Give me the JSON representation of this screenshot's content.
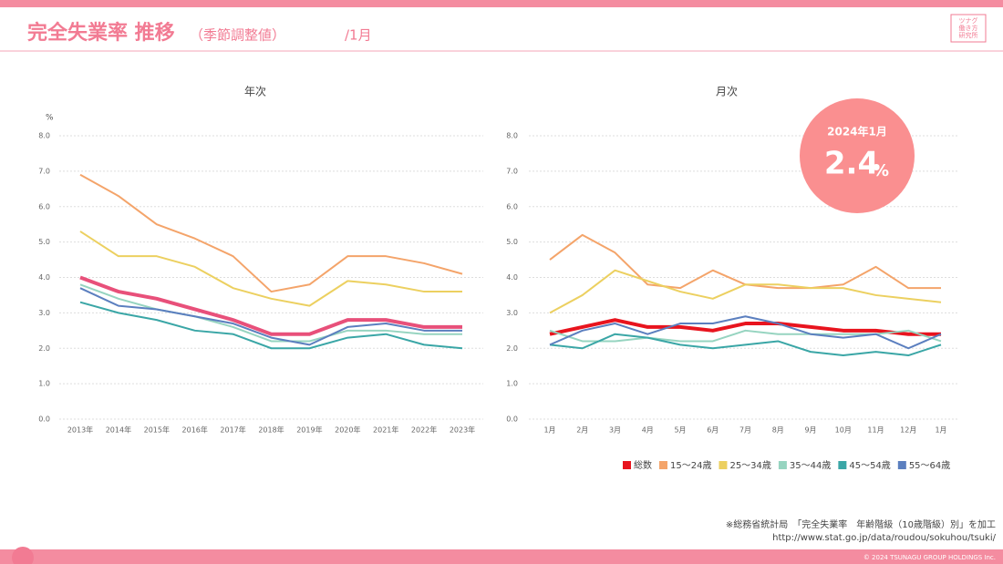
{
  "header": {
    "title": "完全失業率 推移",
    "subtitle": "（季節調整値）",
    "period": "/1月",
    "logo": [
      "ツナグ",
      "働き方",
      "研究所"
    ]
  },
  "badge": {
    "label": "2024年1月",
    "value": "2.4",
    "unit": "%"
  },
  "source": [
    "※総務省統計局　「完全失業率　年齢階級（10歳階級）別」を加工",
    "http://www.stat.go.jp/data/roudou/sokuhou/tsuki/"
  ],
  "copyright": "© 2024 TSUNAGU GROUP HOLDINGS Inc.",
  "chart_data": [
    {
      "type": "line",
      "title": "年次",
      "y_label": "%",
      "grid": true,
      "categories": [
        "2013年",
        "2014年",
        "2015年",
        "2016年",
        "2017年",
        "2018年",
        "2019年",
        "2020年",
        "2021年",
        "2022年",
        "2023年"
      ],
      "ylim": [
        0,
        8
      ],
      "yticks": [
        {
          "value": 0,
          "label": "0.0"
        },
        {
          "value": 1,
          "label": "1.0"
        },
        {
          "value": 2,
          "label": "2.0"
        },
        {
          "value": 3,
          "label": "3.0"
        },
        {
          "value": 4,
          "label": "4.0"
        },
        {
          "value": 5,
          "label": "5.0"
        },
        {
          "value": 6,
          "label": "6.0"
        },
        {
          "value": 7,
          "label": "7.0"
        },
        {
          "value": 8,
          "label": "8.0"
        }
      ],
      "series": [
        {
          "color": "#f4a46a",
          "values": [
            6.9,
            6.3,
            5.5,
            5.1,
            4.6,
            3.6,
            3.8,
            4.6,
            4.6,
            4.4,
            4.1
          ]
        },
        {
          "color": "#ecd060",
          "values": [
            5.3,
            4.6,
            4.6,
            4.3,
            3.7,
            3.4,
            3.2,
            3.9,
            3.8,
            3.6,
            3.6
          ]
        },
        {
          "color": "#96d4c0",
          "values": [
            3.8,
            3.4,
            3.1,
            2.9,
            2.6,
            2.2,
            2.2,
            2.5,
            2.5,
            2.4,
            2.4
          ]
        },
        {
          "color": "#3aa6a6",
          "values": [
            3.3,
            3.0,
            2.8,
            2.5,
            2.4,
            2.0,
            2.0,
            2.3,
            2.4,
            2.1,
            2.0
          ]
        },
        {
          "color": "#5b7fbf",
          "values": [
            3.7,
            3.2,
            3.1,
            2.9,
            2.7,
            2.3,
            2.1,
            2.6,
            2.7,
            2.5,
            2.5
          ]
        },
        {
          "color": "#e8507a",
          "values": [
            4.0,
            3.6,
            3.4,
            3.1,
            2.8,
            2.4,
            2.4,
            2.8,
            2.8,
            2.6,
            2.6
          ],
          "bold": true
        }
      ]
    },
    {
      "type": "line",
      "title": "月次",
      "grid": true,
      "categories": [
        "1月",
        "2月",
        "3月",
        "4月",
        "5月",
        "6月",
        "7月",
        "8月",
        "9月",
        "10月",
        "11月",
        "12月",
        "1月"
      ],
      "ylim": [
        0,
        8
      ],
      "yticks": [
        {
          "value": 0,
          "label": "0.0"
        },
        {
          "value": 1,
          "label": "1.0"
        },
        {
          "value": 2,
          "label": "2.0"
        },
        {
          "value": 3,
          "label": "3.0"
        },
        {
          "value": 4,
          "label": "4.0"
        },
        {
          "value": 5,
          "label": "5.0"
        },
        {
          "value": 6,
          "label": "6.0"
        },
        {
          "value": 7,
          "label": "7.0"
        },
        {
          "value": 8,
          "label": "8.0"
        }
      ],
      "series": [
        {
          "name": "総数",
          "color": "#e8141e",
          "values": [
            2.4,
            2.6,
            2.8,
            2.6,
            2.6,
            2.5,
            2.7,
            2.7,
            2.6,
            2.5,
            2.5,
            2.4,
            2.4
          ],
          "bold": true
        },
        {
          "name": "15～24歳",
          "color": "#f4a46a",
          "values": [
            4.5,
            5.2,
            4.7,
            3.8,
            3.7,
            4.2,
            3.8,
            3.7,
            3.7,
            3.8,
            4.3,
            3.7,
            3.7
          ]
        },
        {
          "name": "25～34歳",
          "color": "#ecd060",
          "values": [
            3.0,
            3.5,
            4.2,
            3.9,
            3.6,
            3.4,
            3.8,
            3.8,
            3.7,
            3.7,
            3.5,
            3.4,
            3.3
          ]
        },
        {
          "name": "35～44歳",
          "color": "#96d4c0",
          "values": [
            2.5,
            2.2,
            2.2,
            2.3,
            2.2,
            2.2,
            2.5,
            2.4,
            2.4,
            2.4,
            2.4,
            2.5,
            2.2
          ]
        },
        {
          "name": "45～54歳",
          "color": "#3aa6a6",
          "values": [
            2.1,
            2.0,
            2.4,
            2.3,
            2.1,
            2.0,
            2.1,
            2.2,
            1.9,
            1.8,
            1.9,
            1.8,
            2.1
          ]
        },
        {
          "name": "55～64歳",
          "color": "#5b7fbf",
          "values": [
            2.1,
            2.5,
            2.7,
            2.4,
            2.7,
            2.7,
            2.9,
            2.7,
            2.4,
            2.3,
            2.4,
            2.0,
            2.4
          ]
        }
      ]
    }
  ]
}
